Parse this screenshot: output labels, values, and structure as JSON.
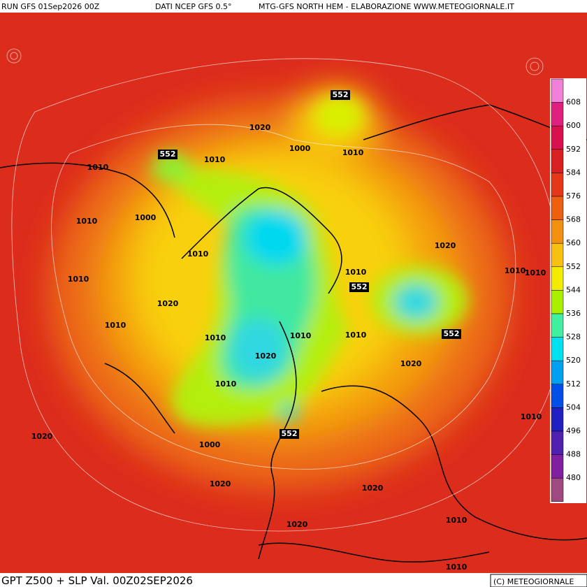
{
  "header": {
    "run": "RUN GFS 01Sep2026 00Z",
    "source": "DATI NCEP GFS 0.5°",
    "credit": "MTG-GFS NORTH HEM - ELABORAZIONE WWW.METEOGIORNALE.IT"
  },
  "footer": {
    "title": "GPT Z500 + SLP Val. 00Z02SEP2026",
    "copyright": "(C) METEOGIORNALE"
  },
  "legend": {
    "labels": [
      608,
      600,
      592,
      584,
      576,
      568,
      560,
      552,
      544,
      536,
      528,
      520,
      512,
      504,
      496,
      488,
      480
    ],
    "colors": [
      "#f080d8",
      "#e02080",
      "#d81050",
      "#d82020",
      "#e43818",
      "#ec6010",
      "#f49010",
      "#f8c010",
      "#f4ec00",
      "#a8f000",
      "#40f0a0",
      "#00e0f0",
      "#00a0f0",
      "#0050e8",
      "#2020c0",
      "#5020b0",
      "#8020a0",
      "#a04880"
    ]
  },
  "contour_labels": [
    552,
    1020,
    552,
    1010,
    1000,
    1010,
    1010,
    1010,
    1000,
    1010,
    1020,
    1010,
    1010,
    552,
    1010,
    1010,
    1020,
    1010,
    1010,
    1010,
    1010,
    552,
    1020,
    1020,
    1010,
    552,
    1020,
    1000,
    1010,
    1020,
    1020,
    1010,
    1020,
    1010
  ]
}
